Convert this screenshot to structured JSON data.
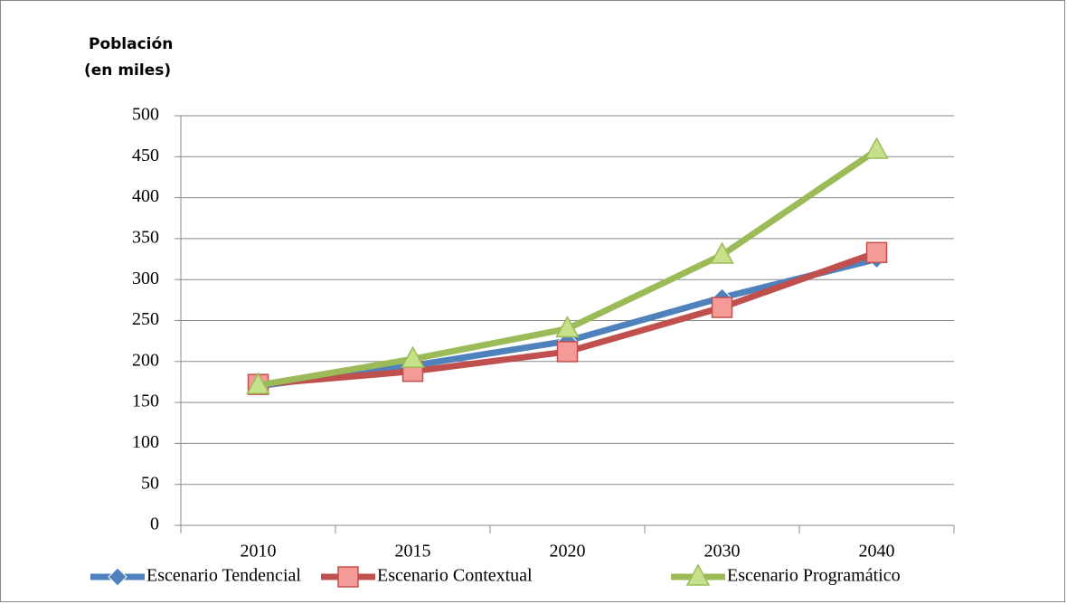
{
  "chart_data": {
    "type": "line",
    "ylabel": [
      "Población",
      "(en miles)"
    ],
    "categories": [
      "2010",
      "2015",
      "2020",
      "2030",
      "2040"
    ],
    "series": [
      {
        "name": "Escenario Tendencial",
        "color": "#4f81bd",
        "marker": "diamond",
        "values": [
          170,
          195,
          225,
          278,
          325
        ]
      },
      {
        "name": "Escenario Contextual",
        "color": "#c0504d",
        "marker": "square",
        "values": [
          172,
          188,
          212,
          266,
          333
        ]
      },
      {
        "name": "Escenario Programático",
        "color": "#9bbb59",
        "marker": "triangle",
        "values": [
          171,
          203,
          240,
          330,
          458
        ]
      }
    ],
    "ylim": [
      0,
      500
    ],
    "yticks": [
      0,
      50,
      100,
      150,
      200,
      250,
      300,
      350,
      400,
      450,
      500
    ],
    "grid": true,
    "legend": "bottom"
  }
}
